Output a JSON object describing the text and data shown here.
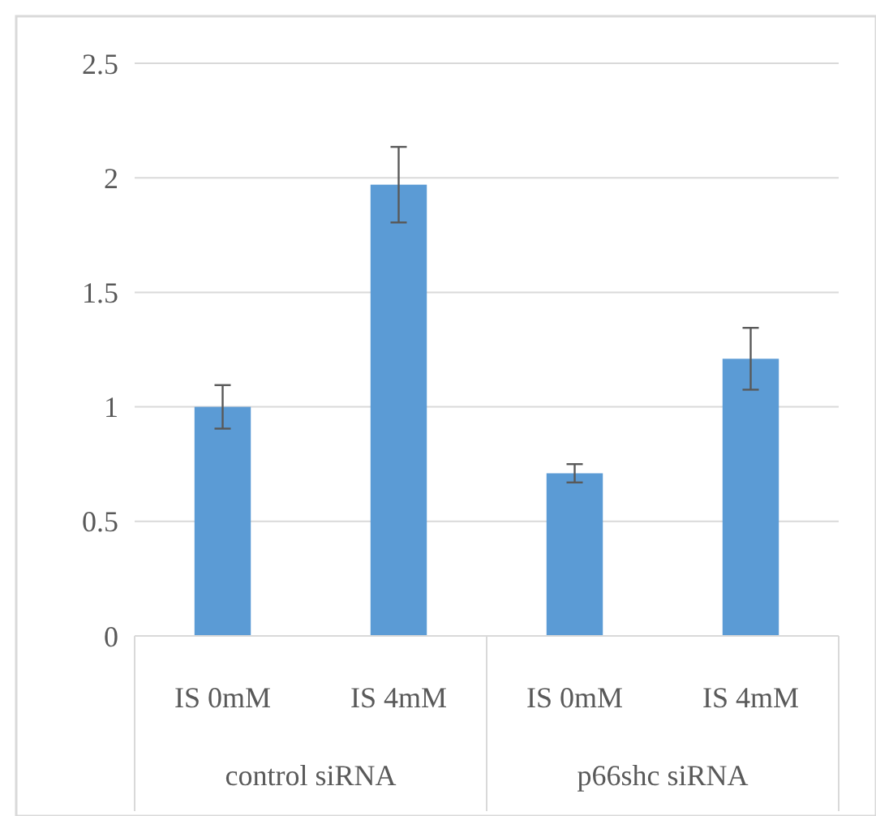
{
  "chart_data": {
    "type": "bar",
    "categories": [
      "IS 0mM",
      "IS 4mM",
      "IS 0mM",
      "IS 4mM"
    ],
    "values": [
      1.0,
      1.97,
      0.71,
      1.21
    ],
    "color": "#5b9bd5",
    "errors": [
      0.095,
      0.165,
      0.04,
      0.135
    ],
    "ylim": [
      0,
      2.5
    ],
    "yticks": [
      0,
      0.5,
      1,
      1.5,
      2,
      2.5
    ],
    "grid": "y",
    "annotations": [
      "control siRNA",
      "p66shc siRNA"
    ]
  }
}
